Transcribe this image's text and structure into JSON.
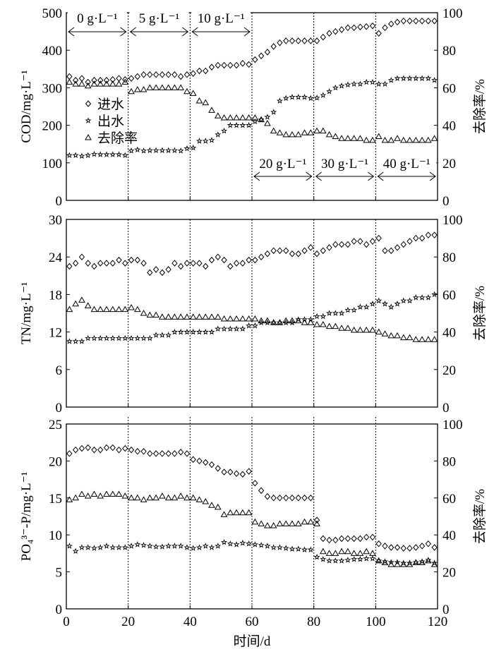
{
  "chart_data": [
    {
      "type": "scatter",
      "ylabel": "COD/mg·L⁻¹",
      "y2label": "去除率/%",
      "ylim": [
        0,
        500
      ],
      "yticks": [
        0,
        100,
        200,
        300,
        400,
        500
      ],
      "y2lim": [
        0,
        100
      ],
      "y2ticks": [
        0,
        20,
        40,
        60,
        80,
        100
      ],
      "legend": {
        "placement": "left-middle",
        "entries": [
          "进水",
          "出水",
          "去除率"
        ]
      },
      "annotations": [
        {
          "text": "0 g·L⁻¹",
          "from": 0,
          "to": 20,
          "position": "top"
        },
        {
          "text": "5 g·L⁻¹",
          "from": 20,
          "to": 40,
          "position": "top"
        },
        {
          "text": "10 g·L⁻¹",
          "from": 40,
          "to": 60,
          "position": "top"
        },
        {
          "text": "20 g·L⁻¹",
          "from": 60,
          "to": 80,
          "position": "bottom"
        },
        {
          "text": "30 g·L⁻¹",
          "from": 80,
          "to": 100,
          "position": "bottom"
        },
        {
          "text": "40 g·L⁻¹",
          "from": 100,
          "to": 120,
          "position": "bottom"
        }
      ],
      "series": [
        {
          "name": "进水",
          "marker": "diamond",
          "axis": "left",
          "values": [
            330,
            320,
            325,
            315,
            320,
            320,
            320,
            322,
            325,
            322,
            325,
            330,
            335,
            335,
            335,
            335,
            335,
            335,
            330,
            335,
            338,
            345,
            345,
            355,
            360,
            360,
            360,
            360,
            365,
            362,
            375,
            385,
            395,
            410,
            420,
            425,
            425,
            425,
            425,
            425,
            425,
            435,
            445,
            450,
            455,
            460,
            460,
            462,
            463,
            465,
            445,
            460,
            470,
            475,
            478,
            478,
            478,
            478,
            478,
            478
          ]
        },
        {
          "name": "出水",
          "marker": "star",
          "axis": "left",
          "values": [
            120,
            120,
            118,
            120,
            123,
            122,
            122,
            122,
            122,
            120,
            132,
            135,
            132,
            133,
            133,
            133,
            133,
            133,
            132,
            138,
            140,
            158,
            158,
            160,
            175,
            185,
            200,
            200,
            200,
            200,
            210,
            215,
            222,
            235,
            265,
            272,
            275,
            275,
            275,
            272,
            273,
            280,
            290,
            300,
            305,
            308,
            310,
            310,
            315,
            315,
            310,
            310,
            320,
            325,
            325,
            325,
            325,
            325,
            325,
            320
          ]
        },
        {
          "name": "去除率",
          "marker": "triangle",
          "axis": "right",
          "values": [
            63,
            62,
            62,
            61,
            62,
            62,
            62,
            62,
            62,
            63,
            58,
            59,
            59,
            60,
            60,
            60,
            60,
            60,
            60,
            58,
            57,
            53,
            52,
            48,
            45,
            44,
            44,
            44,
            44,
            44,
            44,
            43,
            41,
            37,
            36,
            35,
            35,
            35,
            36,
            36,
            37,
            37,
            35,
            34,
            33,
            33,
            33,
            33,
            32,
            32,
            34,
            32,
            32,
            33,
            32,
            32,
            32,
            32,
            32,
            33
          ]
        }
      ]
    },
    {
      "type": "scatter",
      "ylabel": "TN/mg·L⁻¹",
      "y2label": "去除率/%",
      "ylim": [
        0,
        30
      ],
      "yticks": [
        0,
        6,
        12,
        18,
        24,
        30
      ],
      "y2lim": [
        0,
        100
      ],
      "y2ticks": [
        0,
        20,
        40,
        60,
        80,
        100
      ],
      "series": [
        {
          "name": "进水",
          "marker": "diamond",
          "axis": "left",
          "values": [
            22.5,
            23,
            24,
            23,
            22.5,
            23,
            23,
            23,
            23.5,
            23,
            23.5,
            23.5,
            23,
            21.5,
            22,
            21.5,
            22,
            23,
            22.5,
            23,
            23,
            23,
            22.5,
            23.5,
            24,
            23.5,
            22.5,
            23,
            23,
            23.5,
            23.5,
            24,
            24.5,
            25,
            25,
            25,
            24.5,
            24.5,
            25,
            25.5,
            24.5,
            25,
            25.5,
            26,
            26,
            26,
            26.5,
            26.5,
            26,
            26.5,
            27,
            25,
            25,
            25.5,
            26,
            26.5,
            27,
            27,
            27.5,
            27.5
          ]
        },
        {
          "name": "出水",
          "marker": "star",
          "axis": "left",
          "values": [
            10.5,
            10.5,
            10.5,
            11,
            11,
            11,
            11,
            11,
            11,
            11,
            11,
            11,
            11,
            11,
            11.5,
            11.5,
            11.5,
            12,
            12,
            12,
            12,
            12,
            12,
            12,
            12.5,
            12.5,
            12.5,
            12.5,
            12.5,
            13,
            13,
            13.5,
            13.5,
            13.5,
            13.5,
            13.5,
            13.5,
            14,
            14,
            14,
            14.5,
            14.5,
            15,
            15,
            15,
            15.5,
            15.5,
            16,
            16,
            16.5,
            17,
            16.5,
            16,
            16.5,
            17,
            17,
            17.5,
            17.5,
            17.5,
            18
          ]
        },
        {
          "name": "去除率",
          "marker": "triangle",
          "axis": "right",
          "values": [
            52,
            55,
            57,
            54,
            52,
            52,
            52,
            52,
            52,
            52,
            53,
            52,
            50,
            49,
            49,
            48,
            48,
            48,
            48,
            48,
            48,
            48,
            48,
            48,
            48,
            47,
            47,
            47,
            47,
            47,
            47,
            46,
            46,
            45,
            45,
            46,
            46,
            46,
            45,
            45,
            44,
            44,
            43,
            43,
            42,
            42,
            41,
            41,
            41,
            41,
            40,
            39,
            38,
            38,
            37,
            37,
            36,
            36,
            36,
            36
          ]
        }
      ]
    },
    {
      "type": "scatter",
      "ylabel": "PO₄³⁻-P/mg·L⁻¹",
      "y2label": "去除率/%",
      "xlabel": "时间/d",
      "ylim": [
        0,
        25
      ],
      "yticks": [
        0,
        5,
        10,
        15,
        20,
        25
      ],
      "y2lim": [
        0,
        100
      ],
      "y2ticks": [
        0,
        20,
        40,
        60,
        80,
        100
      ],
      "series": [
        {
          "name": "进水",
          "marker": "diamond",
          "axis": "left",
          "values": [
            21,
            21.5,
            21.7,
            21.8,
            21.5,
            21.5,
            21.8,
            21.8,
            21.5,
            21.7,
            21.5,
            21.3,
            21.3,
            21,
            21,
            21,
            21,
            21,
            21.2,
            21,
            20.2,
            20,
            19.8,
            19.5,
            19,
            18.5,
            18.5,
            18.3,
            18.2,
            18.6,
            17,
            16,
            15.2,
            15,
            15,
            15,
            15,
            15,
            15,
            15,
            12,
            9.5,
            9.3,
            9.3,
            9.5,
            9.5,
            9.5,
            9.5,
            9.7,
            9.7,
            8.8,
            8.5,
            8.3,
            8.3,
            8.2,
            8.2,
            8.3,
            8.5,
            8.8,
            8.3
          ]
        },
        {
          "name": "出水",
          "marker": "star",
          "axis": "left",
          "values": [
            8.5,
            7.8,
            8.3,
            8.3,
            8.2,
            8.3,
            8.5,
            8.3,
            8.3,
            8.3,
            8.5,
            8.7,
            8.6,
            8.5,
            8.4,
            8.4,
            8.5,
            8.5,
            8.5,
            8.3,
            8.2,
            8.3,
            8.5,
            8.3,
            8.5,
            9,
            8.8,
            8.7,
            8.9,
            8.8,
            8.7,
            8.6,
            8.5,
            8.3,
            8.3,
            8.2,
            8.1,
            8.1,
            8,
            8,
            7,
            6.7,
            6.5,
            6.5,
            6.5,
            6.6,
            6.7,
            6.7,
            6.8,
            6.8,
            6.5,
            6.4,
            6.3,
            6.3,
            6.2,
            6.2,
            6.3,
            6.4,
            6.6,
            6.2
          ]
        },
        {
          "name": "去除率",
          "marker": "triangle",
          "axis": "right",
          "values": [
            59,
            60,
            62,
            61,
            62,
            61,
            62,
            62,
            62,
            61,
            60,
            60,
            59,
            60,
            60,
            61,
            60,
            60,
            61,
            60,
            60,
            59,
            58,
            56,
            55,
            51,
            52,
            52,
            52,
            52,
            47,
            46,
            45,
            45,
            46,
            46,
            46,
            46,
            47,
            47,
            46,
            31,
            30,
            30,
            31,
            31,
            30,
            30,
            31,
            30,
            26,
            25,
            24,
            24,
            24,
            24,
            25,
            25,
            26,
            24
          ]
        }
      ]
    }
  ],
  "x_shared": {
    "start": 1,
    "step": 2,
    "xlim": [
      0,
      120
    ],
    "xticks": [
      0,
      20,
      40,
      60,
      80,
      100,
      120
    ],
    "dividers": [
      20,
      40,
      60,
      80,
      100
    ],
    "xlabel": "时间/d"
  }
}
